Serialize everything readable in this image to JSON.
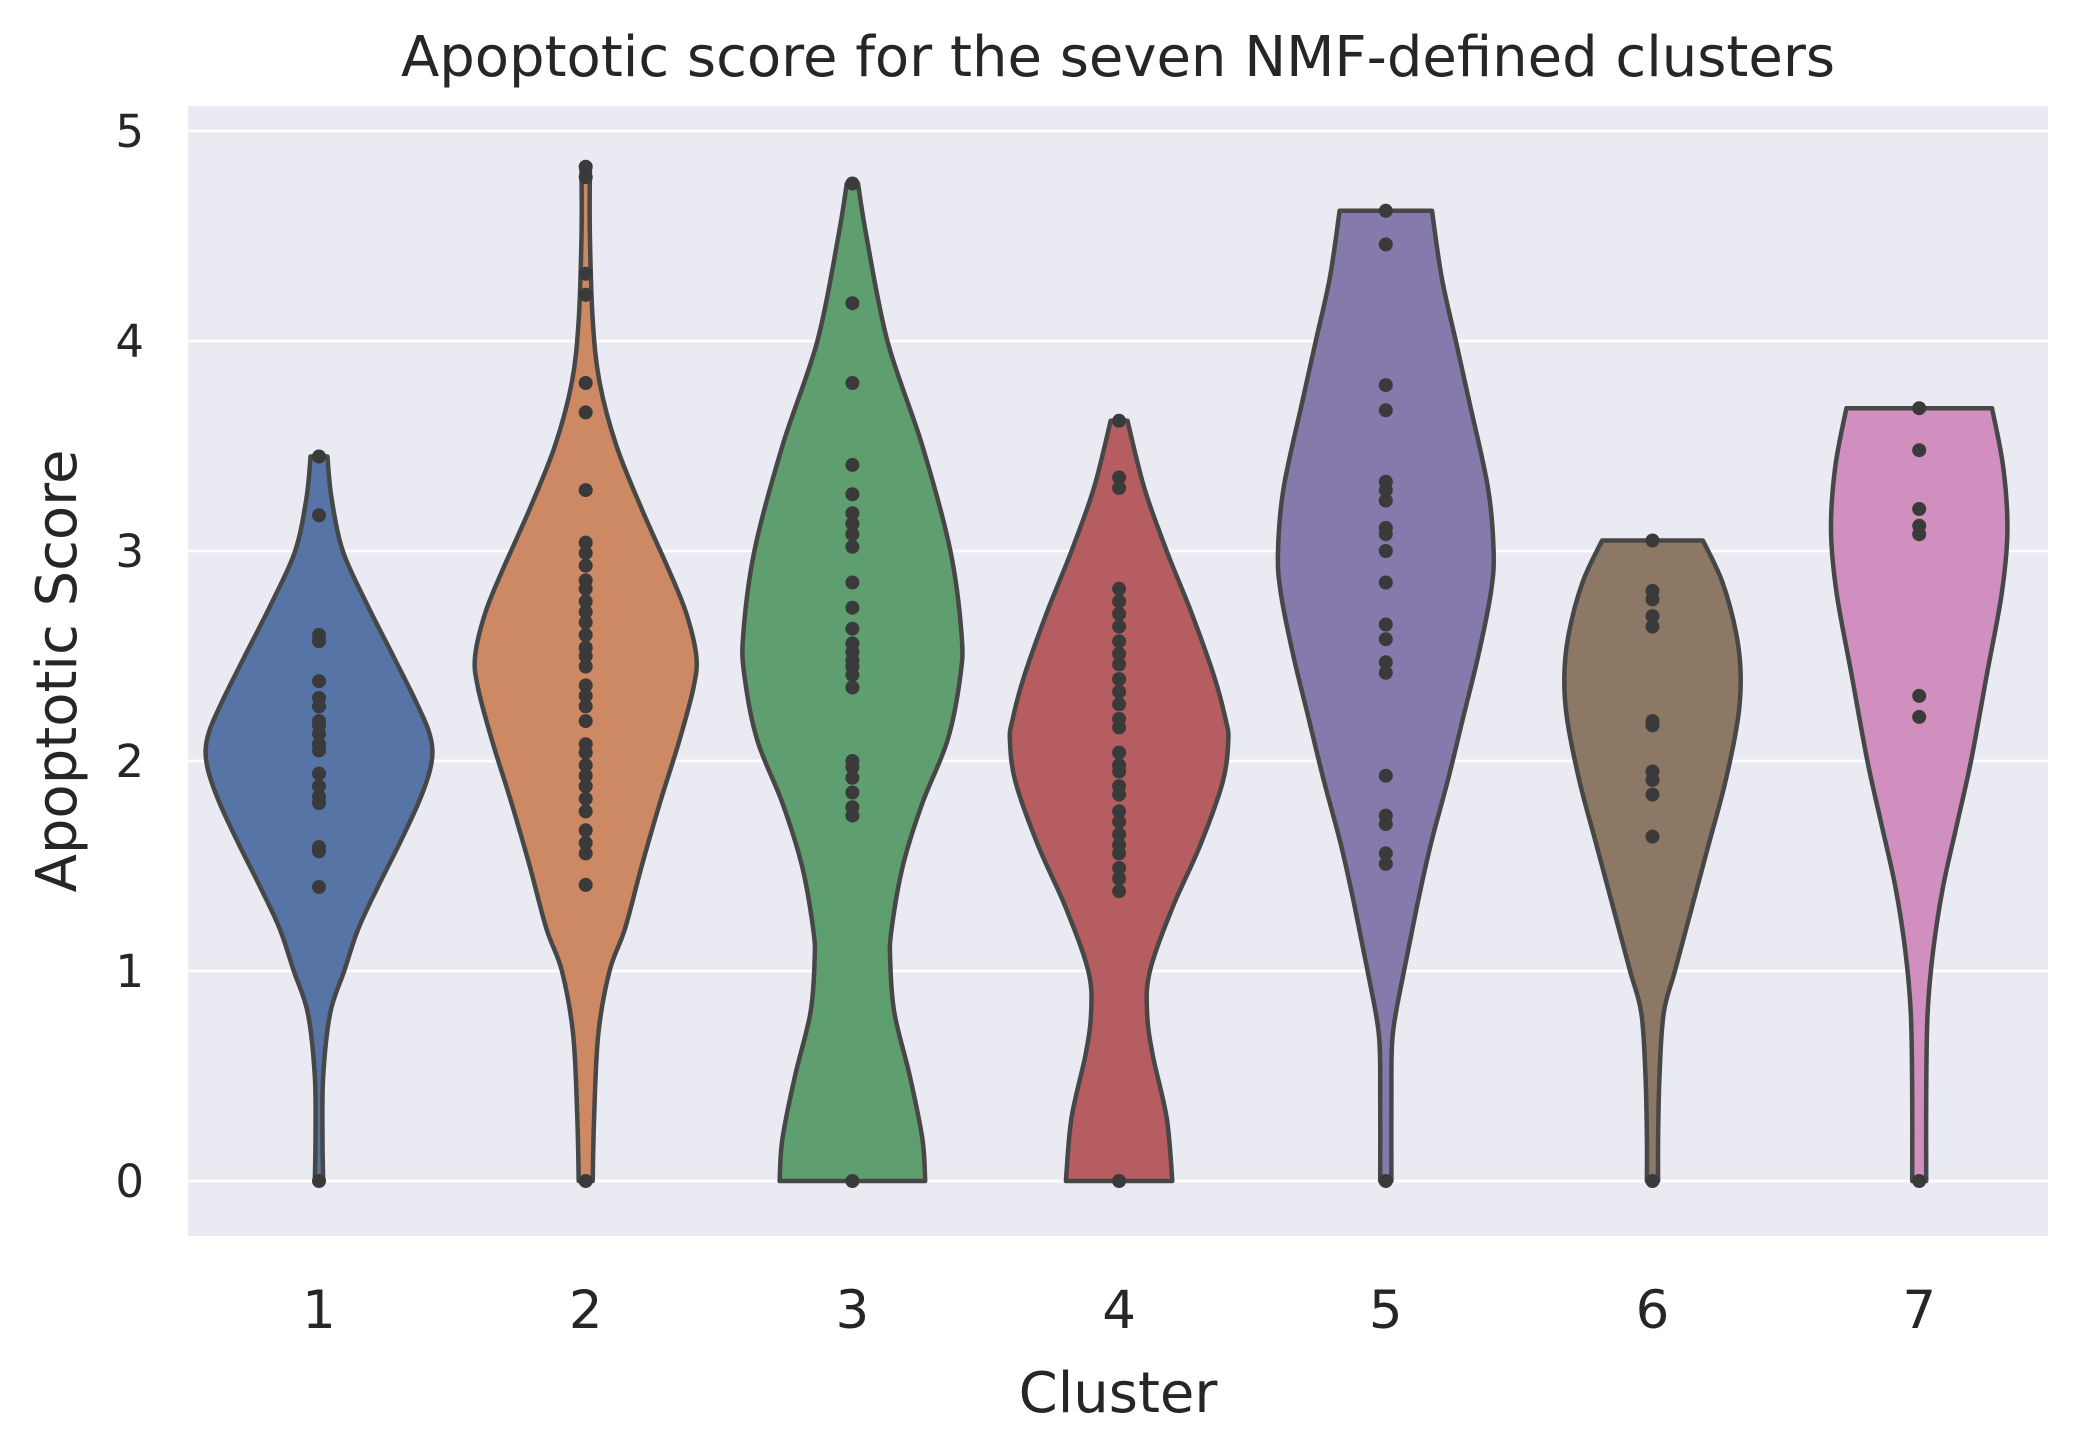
{
  "chart_data": {
    "type": "violin",
    "title": "Apoptotic score for the seven NMF-defined clusters",
    "xlabel": "Cluster",
    "ylabel": "Apoptotic Score",
    "ylim": [
      -0.27,
      5.1
    ],
    "yticks": [
      0,
      1,
      2,
      3,
      4,
      5
    ],
    "grid": true,
    "background": "#eaeaf2",
    "categories": [
      "1",
      "2",
      "3",
      "4",
      "5",
      "6",
      "7"
    ],
    "series": [
      {
        "category": "1",
        "color": "#5674a6",
        "max": 3.45,
        "min": 0,
        "profile": [
          [
            3.45,
            0.06
          ],
          [
            3.25,
            0.09
          ],
          [
            3.0,
            0.17
          ],
          [
            2.75,
            0.34
          ],
          [
            2.5,
            0.53
          ],
          [
            2.3,
            0.68
          ],
          [
            2.15,
            0.78
          ],
          [
            2.05,
            0.81
          ],
          [
            1.95,
            0.79
          ],
          [
            1.8,
            0.71
          ],
          [
            1.6,
            0.57
          ],
          [
            1.4,
            0.42
          ],
          [
            1.2,
            0.28
          ],
          [
            1.0,
            0.18
          ],
          [
            0.8,
            0.08
          ],
          [
            0.5,
            0.03
          ],
          [
            0.2,
            0.025
          ],
          [
            0,
            0.03
          ]
        ],
        "points": [
          0,
          1.4,
          1.57,
          1.59,
          1.8,
          1.83,
          1.88,
          1.94,
          2.05,
          2.08,
          2.13,
          2.17,
          2.19,
          2.26,
          2.3,
          2.38,
          2.57,
          2.6,
          3.17,
          3.45
        ]
      },
      {
        "category": "2",
        "color": "#cd8963",
        "max": 4.83,
        "min": 0,
        "profile": [
          [
            4.83,
            0.03
          ],
          [
            4.5,
            0.03
          ],
          [
            4.1,
            0.05
          ],
          [
            3.8,
            0.1
          ],
          [
            3.5,
            0.22
          ],
          [
            3.2,
            0.4
          ],
          [
            2.9,
            0.6
          ],
          [
            2.7,
            0.72
          ],
          [
            2.5,
            0.79
          ],
          [
            2.35,
            0.77
          ],
          [
            2.1,
            0.67
          ],
          [
            1.8,
            0.53
          ],
          [
            1.5,
            0.4
          ],
          [
            1.2,
            0.28
          ],
          [
            1.0,
            0.17
          ],
          [
            0.7,
            0.09
          ],
          [
            0.3,
            0.06
          ],
          [
            0,
            0.05
          ]
        ],
        "points": [
          0,
          1.41,
          1.56,
          1.61,
          1.67,
          1.76,
          1.82,
          1.88,
          1.93,
          1.98,
          2.04,
          2.08,
          2.19,
          2.26,
          2.31,
          2.36,
          2.45,
          2.5,
          2.54,
          2.6,
          2.66,
          2.71,
          2.76,
          2.82,
          2.86,
          2.93,
          2.99,
          3.04,
          3.29,
          3.66,
          3.8,
          4.22,
          4.32,
          4.78,
          4.83
        ]
      },
      {
        "category": "3",
        "color": "#5f9e6e",
        "max": 4.75,
        "min": 0,
        "profile": [
          [
            4.75,
            0.04
          ],
          [
            4.5,
            0.1
          ],
          [
            4.0,
            0.25
          ],
          [
            3.5,
            0.5
          ],
          [
            3.0,
            0.7
          ],
          [
            2.6,
            0.78
          ],
          [
            2.4,
            0.77
          ],
          [
            2.1,
            0.68
          ],
          [
            1.8,
            0.5
          ],
          [
            1.5,
            0.36
          ],
          [
            1.2,
            0.28
          ],
          [
            1.05,
            0.27
          ],
          [
            0.8,
            0.3
          ],
          [
            0.5,
            0.41
          ],
          [
            0.2,
            0.5
          ],
          [
            0,
            0.52
          ]
        ],
        "points": [
          0,
          1.74,
          1.78,
          1.85,
          1.92,
          1.97,
          2.0,
          2.35,
          2.41,
          2.45,
          2.48,
          2.52,
          2.56,
          2.63,
          2.73,
          2.85,
          3.02,
          3.08,
          3.13,
          3.18,
          3.27,
          3.41,
          3.8,
          4.18,
          4.75
        ]
      },
      {
        "category": "4",
        "color": "#b55d60",
        "max": 3.62,
        "min": 0,
        "profile": [
          [
            3.62,
            0.06
          ],
          [
            3.3,
            0.18
          ],
          [
            3.0,
            0.34
          ],
          [
            2.7,
            0.52
          ],
          [
            2.4,
            0.68
          ],
          [
            2.2,
            0.76
          ],
          [
            2.1,
            0.78
          ],
          [
            1.9,
            0.74
          ],
          [
            1.6,
            0.58
          ],
          [
            1.3,
            0.38
          ],
          [
            1.0,
            0.22
          ],
          [
            0.8,
            0.2
          ],
          [
            0.6,
            0.24
          ],
          [
            0.3,
            0.34
          ],
          [
            0,
            0.38
          ]
        ],
        "points": [
          0,
          1.38,
          1.44,
          1.49,
          1.56,
          1.6,
          1.65,
          1.71,
          1.76,
          1.84,
          1.88,
          1.95,
          1.98,
          2.04,
          2.16,
          2.2,
          2.27,
          2.33,
          2.39,
          2.46,
          2.51,
          2.57,
          2.64,
          2.7,
          2.76,
          2.82,
          3.3,
          3.35,
          3.62
        ]
      },
      {
        "category": "5",
        "color": "#857aab",
        "max": 4.62,
        "min": 0,
        "profile": [
          [
            4.62,
            0.33
          ],
          [
            4.3,
            0.4
          ],
          [
            4.0,
            0.5
          ],
          [
            3.7,
            0.6
          ],
          [
            3.3,
            0.73
          ],
          [
            3.0,
            0.77
          ],
          [
            2.8,
            0.75
          ],
          [
            2.5,
            0.66
          ],
          [
            2.2,
            0.55
          ],
          [
            1.9,
            0.44
          ],
          [
            1.6,
            0.32
          ],
          [
            1.3,
            0.22
          ],
          [
            1.0,
            0.13
          ],
          [
            0.7,
            0.05
          ],
          [
            0.4,
            0.04
          ],
          [
            0,
            0.04
          ]
        ],
        "points": [
          0,
          1.51,
          1.56,
          1.7,
          1.74,
          1.93,
          2.42,
          2.47,
          2.58,
          2.65,
          2.85,
          3.0,
          3.08,
          3.11,
          3.24,
          3.29,
          3.33,
          3.67,
          3.79,
          4.46,
          4.62
        ]
      },
      {
        "category": "6",
        "color": "#8d7866",
        "max": 3.05,
        "min": 0,
        "profile": [
          [
            3.05,
            0.36
          ],
          [
            2.85,
            0.5
          ],
          [
            2.6,
            0.6
          ],
          [
            2.4,
            0.63
          ],
          [
            2.2,
            0.61
          ],
          [
            1.9,
            0.52
          ],
          [
            1.6,
            0.4
          ],
          [
            1.3,
            0.28
          ],
          [
            1.0,
            0.16
          ],
          [
            0.8,
            0.08
          ],
          [
            0.5,
            0.05
          ],
          [
            0.2,
            0.04
          ],
          [
            0,
            0.04
          ]
        ],
        "points": [
          0,
          1.64,
          1.84,
          1.91,
          1.95,
          2.17,
          2.19,
          2.64,
          2.69,
          2.77,
          2.81,
          3.05
        ]
      },
      {
        "category": "7",
        "color": "#d08fbe",
        "max": 3.68,
        "min": 0,
        "profile": [
          [
            3.68,
            0.52
          ],
          [
            3.4,
            0.6
          ],
          [
            3.1,
            0.63
          ],
          [
            2.8,
            0.59
          ],
          [
            2.4,
            0.48
          ],
          [
            2.0,
            0.37
          ],
          [
            1.7,
            0.27
          ],
          [
            1.4,
            0.17
          ],
          [
            1.1,
            0.1
          ],
          [
            0.8,
            0.06
          ],
          [
            0.4,
            0.05
          ],
          [
            0,
            0.05
          ]
        ],
        "points": [
          0,
          2.21,
          2.31,
          3.08,
          3.12,
          3.2,
          3.48,
          3.68
        ]
      }
    ]
  }
}
